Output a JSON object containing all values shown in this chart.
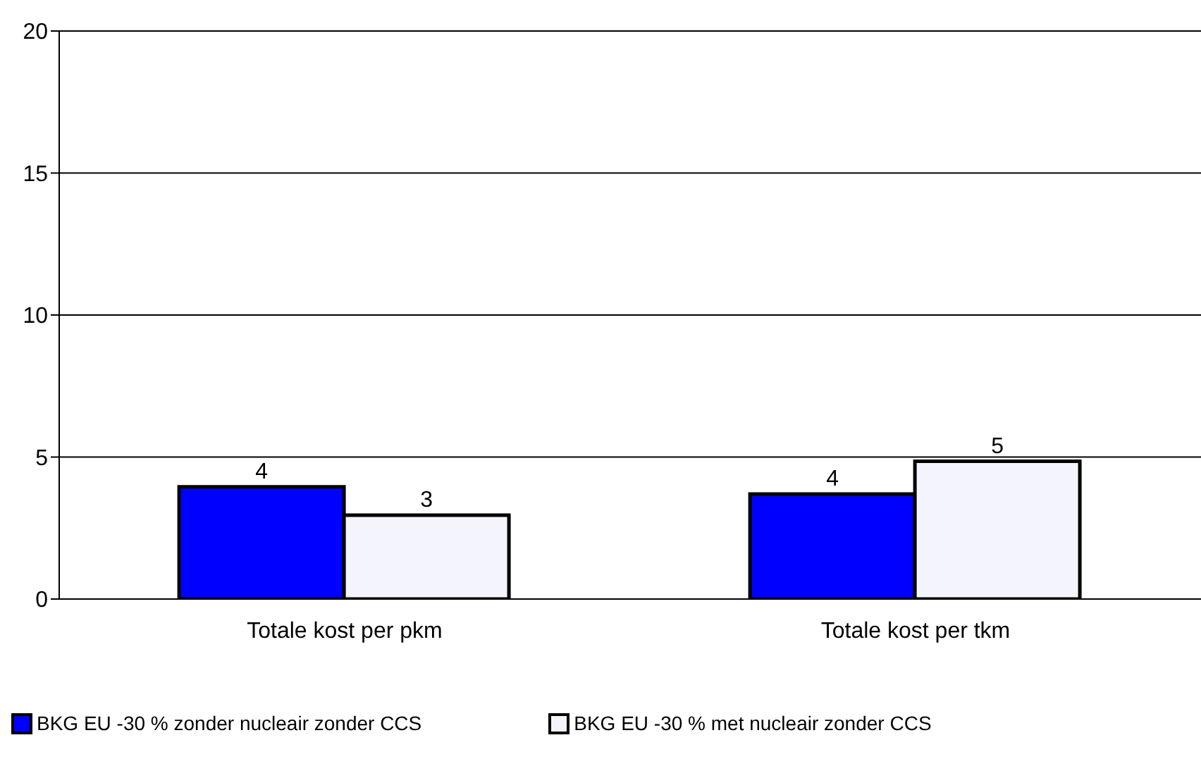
{
  "chart_data": {
    "type": "bar",
    "categories": [
      "Totale kost per pkm",
      "Totale kost per tkm"
    ],
    "series": [
      {
        "name": "BKG EU -30 % zonder nucleair zonder CCS",
        "color": "#0000ff",
        "values": [
          3.95,
          3.7
        ],
        "value_labels": [
          "4",
          "4"
        ]
      },
      {
        "name": "BKG EU -30 % met nucleair zonder CCS",
        "color": "#f4f4fc",
        "values": [
          2.95,
          4.85
        ],
        "value_labels": [
          "3",
          "5"
        ]
      }
    ],
    "ylim": [
      0,
      20
    ],
    "yticks": [
      0,
      5,
      10,
      15,
      20
    ],
    "grid": "y",
    "legend": "bottom left"
  }
}
